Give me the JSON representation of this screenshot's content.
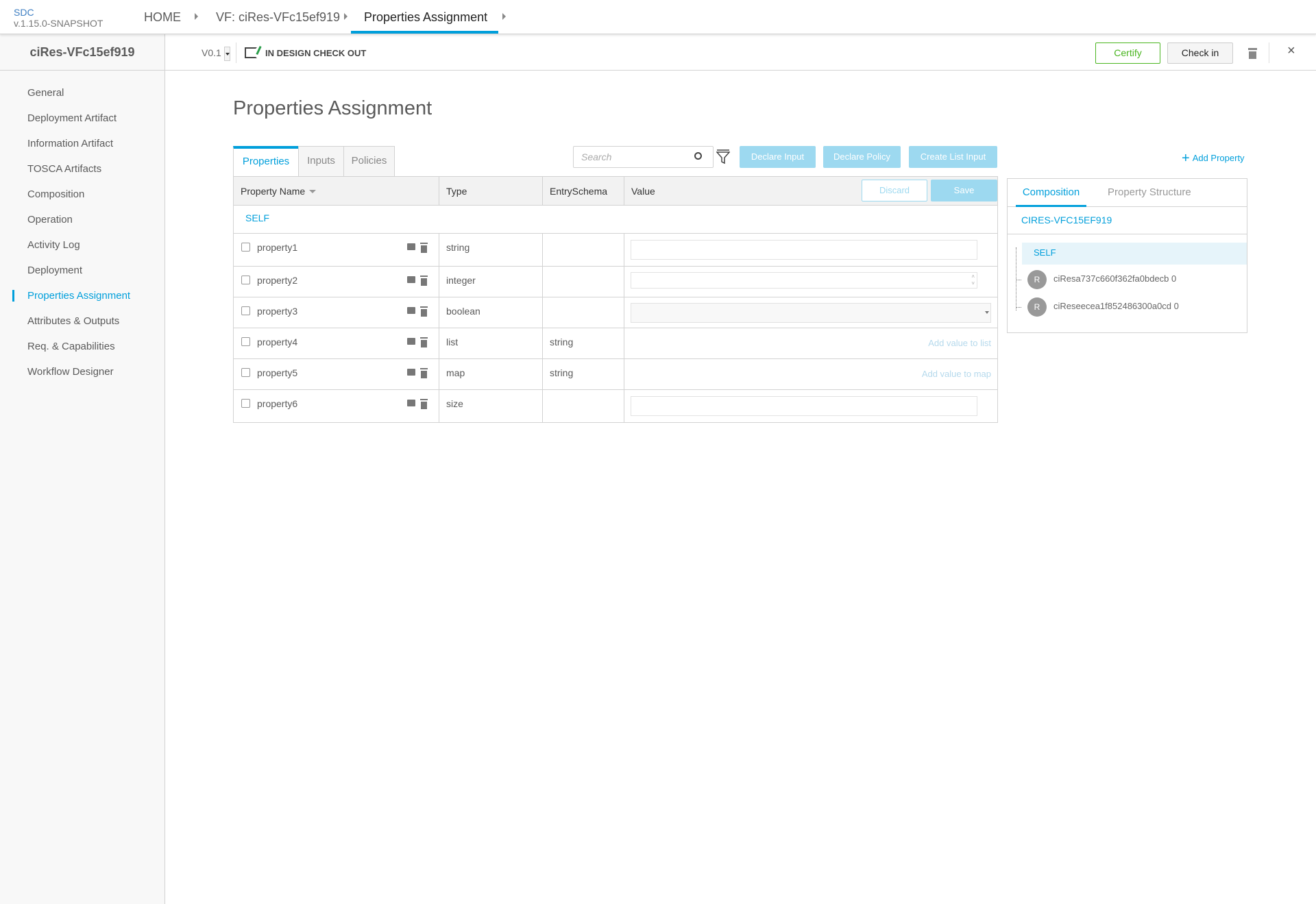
{
  "header": {
    "brand": "SDC",
    "version": "v.1.15.0-SNAPSHOT",
    "breadcrumbs": [
      "HOME",
      "VF: ciRes-VFc15ef919",
      "Properties Assignment"
    ]
  },
  "subheader": {
    "version": "V0.1",
    "status": "IN DESIGN CHECK OUT",
    "certify": "Certify",
    "check_in": "Check in"
  },
  "sidebar": {
    "title": "ciRes-VFc15ef919",
    "active": "Properties Assignment",
    "items": [
      "General",
      "Deployment Artifact",
      "Information Artifact",
      "TOSCA Artifacts",
      "Composition",
      "Operation",
      "Activity Log",
      "Deployment",
      "Properties Assignment",
      "Attributes & Outputs",
      "Req. & Capabilities",
      "Workflow Designer"
    ]
  },
  "main": {
    "title": "Properties Assignment",
    "tabs": [
      "Properties",
      "Inputs",
      "Policies"
    ],
    "active_tab": "Properties",
    "search_placeholder": "Search",
    "buttons": {
      "declare_input": "Declare Input",
      "declare_policy": "Declare Policy",
      "create_list_input": "Create List Input",
      "add_property": "Add Property",
      "discard": "Discard",
      "save": "Save"
    },
    "table": {
      "columns": [
        "Property Name",
        "Type",
        "EntrySchema",
        "Value"
      ],
      "group": "SELF",
      "rows": [
        {
          "name": "property1",
          "type": "string",
          "schema": "",
          "value": ""
        },
        {
          "name": "property2",
          "type": "integer",
          "schema": "",
          "value": ""
        },
        {
          "name": "property3",
          "type": "boolean",
          "schema": "",
          "value": ""
        },
        {
          "name": "property4",
          "type": "list",
          "schema": "string",
          "value": "Add value to list"
        },
        {
          "name": "property5",
          "type": "map",
          "schema": "string",
          "value": "Add value to map"
        },
        {
          "name": "property6",
          "type": "size",
          "schema": "",
          "value": ""
        }
      ]
    }
  },
  "right_panel": {
    "tabs": [
      "Composition",
      "Property Structure"
    ],
    "active_tab": "Composition",
    "component": "CIRES-VFC15EF919",
    "tree": {
      "self": "SELF",
      "instances": [
        {
          "badge": "R",
          "name": "ciResa737c660f362fa0bdecb 0"
        },
        {
          "badge": "R",
          "name": "ciReseecea1f852486300a0cd 0"
        }
      ]
    }
  },
  "colors": {
    "accent": "#009fdb",
    "certify": "#4ab520",
    "button_light": "#9dd9f0"
  }
}
